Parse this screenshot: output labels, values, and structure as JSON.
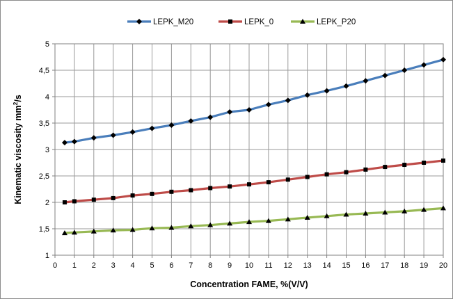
{
  "chart_data": {
    "type": "line",
    "title": "",
    "xlabel": "Concentration FAME, %(V/V)",
    "ylabel": {
      "prefix": "Kinematic viscosity mm",
      "sup": "2",
      "suffix": "/s"
    },
    "xlim": [
      0,
      20
    ],
    "ylim": [
      1,
      5
    ],
    "x_ticks": [
      "0",
      "1",
      "2",
      "3",
      "4",
      "5",
      "6",
      "7",
      "8",
      "9",
      "10",
      "11",
      "12",
      "13",
      "14",
      "15",
      "16",
      "17",
      "18",
      "19",
      "20"
    ],
    "y_ticks": [
      "1",
      "1,5",
      "2",
      "2,5",
      "3",
      "3,5",
      "4",
      "4,5",
      "5"
    ],
    "grid": true,
    "legend_position": "top",
    "x": [
      0.5,
      1,
      2,
      3,
      4,
      5,
      6,
      7,
      8,
      9,
      10,
      11,
      12,
      13,
      14,
      15,
      16,
      17,
      18,
      19,
      20
    ],
    "series": [
      {
        "name": "LEPK_M20",
        "color": "#4a7ebb",
        "marker": "diamond",
        "values": [
          3.13,
          3.15,
          3.22,
          3.27,
          3.33,
          3.4,
          3.46,
          3.54,
          3.61,
          3.71,
          3.75,
          3.85,
          3.93,
          4.03,
          4.11,
          4.2,
          4.3,
          4.4,
          4.5,
          4.6,
          4.7
        ]
      },
      {
        "name": "LEPK_0",
        "color": "#be4b48",
        "marker": "square",
        "values": [
          2.0,
          2.02,
          2.05,
          2.08,
          2.13,
          2.16,
          2.2,
          2.23,
          2.27,
          2.3,
          2.34,
          2.38,
          2.43,
          2.48,
          2.53,
          2.57,
          2.62,
          2.67,
          2.71,
          2.75,
          2.79
        ]
      },
      {
        "name": "LEPK_P20",
        "color": "#98b954",
        "marker": "triangle",
        "values": [
          1.42,
          1.43,
          1.45,
          1.47,
          1.48,
          1.51,
          1.52,
          1.55,
          1.57,
          1.6,
          1.63,
          1.65,
          1.68,
          1.71,
          1.74,
          1.77,
          1.79,
          1.81,
          1.83,
          1.86,
          1.89
        ]
      }
    ]
  }
}
